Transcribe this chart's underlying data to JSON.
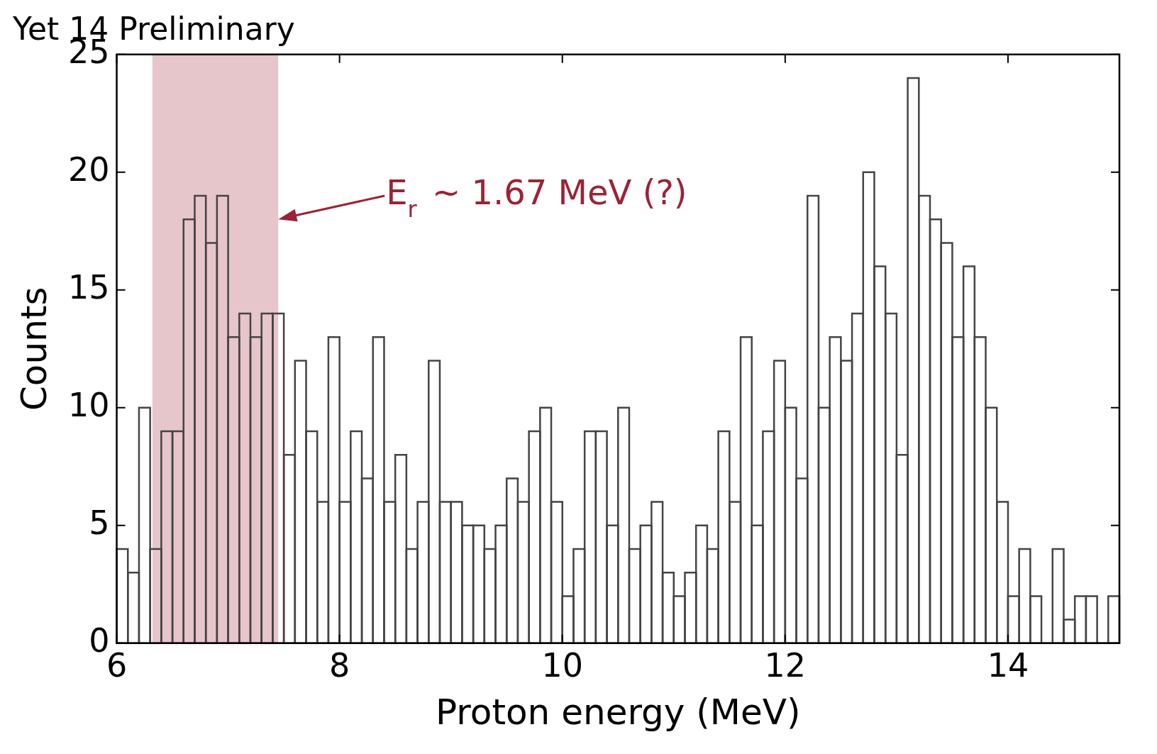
{
  "chart_data": {
    "type": "histogram",
    "title": "Yet 14 Preliminary",
    "xlabel": "Proton energy (MeV)",
    "ylabel": "Counts",
    "bins": [
      6.0,
      6.1,
      6.2,
      6.3,
      6.4,
      6.5,
      6.6,
      6.7,
      6.8,
      6.9,
      7.0,
      7.1,
      7.2,
      7.3,
      7.4,
      7.5,
      7.6,
      7.7,
      7.8,
      7.9,
      8.0,
      8.1,
      8.2,
      8.3,
      8.4,
      8.5,
      8.6,
      8.7,
      8.8,
      8.9,
      9.0,
      9.1,
      9.2,
      9.3,
      9.4,
      9.5,
      9.6,
      9.7,
      9.8,
      9.9,
      10.0,
      10.1,
      10.2,
      10.3,
      10.4,
      10.5,
      10.6,
      10.7,
      10.8,
      10.9,
      11.0,
      11.1,
      11.2,
      11.3,
      11.4,
      11.5,
      11.6,
      11.7,
      11.8,
      11.9,
      12.0,
      12.1,
      12.2,
      12.3,
      12.4,
      12.5,
      12.6,
      12.7,
      12.8,
      12.9,
      13.0,
      13.1,
      13.2,
      13.3,
      13.4,
      13.5,
      13.6,
      13.7,
      13.8,
      13.9,
      14.0,
      14.1,
      14.2,
      14.3,
      14.4,
      14.5,
      14.6,
      14.7,
      14.8,
      14.9,
      15.0
    ],
    "values": [
      4,
      3,
      10,
      4,
      9,
      9,
      18,
      19,
      17,
      19,
      13,
      14,
      13,
      14,
      14,
      8,
      12,
      9,
      6,
      13,
      6,
      9,
      7,
      13,
      6,
      8,
      4,
      6,
      12,
      6,
      6,
      5,
      5,
      4,
      5,
      7,
      6,
      9,
      10,
      6,
      2,
      4,
      9,
      9,
      5,
      10,
      4,
      5,
      6,
      3,
      2,
      3,
      5,
      4,
      9,
      6,
      13,
      5,
      9,
      12,
      10,
      7,
      19,
      10,
      13,
      12,
      14,
      20,
      16,
      14,
      8,
      24,
      19,
      18,
      17,
      13,
      16,
      13,
      10,
      6,
      2,
      4,
      2,
      0,
      4,
      1,
      2,
      2,
      0,
      2
    ],
    "color": "#444444",
    "xlim": [
      6,
      15
    ],
    "xticks": [
      6,
      8,
      10,
      12,
      14
    ],
    "ylim": [
      0,
      25
    ],
    "yticks": [
      0,
      5,
      10,
      15,
      20,
      25
    ],
    "grid": false,
    "bands": [
      {
        "axis": "x",
        "from": 6.32,
        "to": 7.45,
        "color": "#e6c5cb"
      }
    ],
    "annotations": [
      "E$_{r}$ ~ 1.67 MeV (?)"
    ]
  }
}
